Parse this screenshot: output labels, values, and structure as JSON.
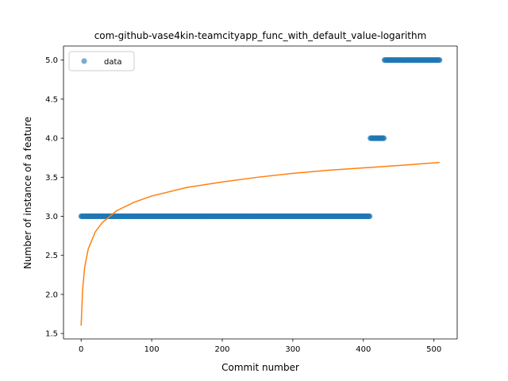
{
  "chart_data": {
    "type": "scatter",
    "title": "com-github-vase4kin-teamcityapp_func_with_default_value-logarithm",
    "xlabel": "Commit number",
    "ylabel": "Number of instance of a feature",
    "xlim": [
      -25,
      533
    ],
    "ylim": [
      1.43,
      5.18
    ],
    "xticks": [
      0,
      100,
      200,
      300,
      400,
      500
    ],
    "yticks": [
      1.5,
      2.0,
      2.5,
      3.0,
      3.5,
      4.0,
      4.5,
      5.0
    ],
    "xtick_labels": [
      "0",
      "100",
      "200",
      "300",
      "400",
      "500"
    ],
    "ytick_labels": [
      "1.5",
      "2.0",
      "2.5",
      "3.0",
      "3.5",
      "4.0",
      "4.5",
      "5.0"
    ],
    "grid": false,
    "legend": {
      "placement": "upper-left",
      "entries": [
        "data"
      ]
    },
    "series": [
      {
        "name": "data",
        "kind": "scatter",
        "color": "#1f77b4",
        "segments": [
          {
            "x_start": 0,
            "x_end": 409,
            "y": 3.0
          },
          {
            "x_start": 410,
            "x_end": 429,
            "y": 4.0
          },
          {
            "x_start": 430,
            "x_end": 508,
            "y": 5.0
          }
        ]
      },
      {
        "kind": "line",
        "color": "#ff7f0e",
        "curve": "logarithmic",
        "x": [
          0,
          2,
          5,
          10,
          20,
          30,
          50,
          75,
          100,
          150,
          200,
          250,
          300,
          350,
          400,
          450,
          508
        ],
        "y": [
          1.6,
          2.05,
          2.35,
          2.58,
          2.8,
          2.92,
          3.07,
          3.18,
          3.26,
          3.37,
          3.44,
          3.5,
          3.55,
          3.59,
          3.62,
          3.65,
          3.69
        ]
      }
    ]
  }
}
